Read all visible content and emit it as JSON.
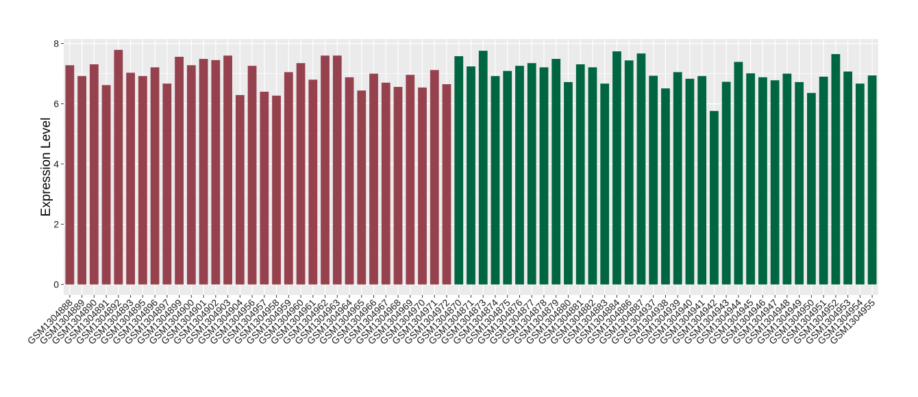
{
  "chart_data": {
    "type": "bar",
    "title": "",
    "xlabel": "",
    "ylabel": "Expression Level",
    "ylim": [
      -0.35,
      8.15
    ],
    "yticks": [
      0,
      2,
      4,
      6,
      8
    ],
    "grid": true,
    "legend": "none",
    "background_color": "#ebebeb",
    "gridline_color": "#ffffff",
    "categories": [
      "GSM1304888",
      "GSM1304889",
      "GSM1304890",
      "GSM1304891",
      "GSM1304892",
      "GSM1304893",
      "GSM1304895",
      "GSM1304896",
      "GSM1304897",
      "GSM1304899",
      "GSM1304900",
      "GSM1304901",
      "GSM1304902",
      "GSM1304903",
      "GSM1304904",
      "GSM1304956",
      "GSM1304957",
      "GSM1304958",
      "GSM1304959",
      "GSM1304960",
      "GSM1304961",
      "GSM1304962",
      "GSM1304963",
      "GSM1304964",
      "GSM1304965",
      "GSM1304966",
      "GSM1304967",
      "GSM1304968",
      "GSM1304969",
      "GSM1304970",
      "GSM1304971",
      "GSM1304972",
      "GSM1304870",
      "GSM1304871",
      "GSM1304873",
      "GSM1304874",
      "GSM1304875",
      "GSM1304876",
      "GSM1304877",
      "GSM1304878",
      "GSM1304879",
      "GSM1304880",
      "GSM1304881",
      "GSM1304882",
      "GSM1304883",
      "GSM1304884",
      "GSM1304886",
      "GSM1304887",
      "GSM1304937",
      "GSM1304938",
      "GSM1304939",
      "GSM1304940",
      "GSM1304941",
      "GSM1304942",
      "GSM1304943",
      "GSM1304944",
      "GSM1304945",
      "GSM1304946",
      "GSM1304947",
      "GSM1304948",
      "GSM1304949",
      "GSM1304950",
      "GSM1304951",
      "GSM1304952",
      "GSM1304953",
      "GSM1304954",
      "GSM1304955"
    ],
    "values": [
      7.28,
      6.92,
      7.31,
      6.62,
      7.79,
      7.03,
      6.92,
      7.21,
      6.67,
      7.56,
      7.28,
      7.49,
      7.45,
      7.6,
      6.29,
      7.26,
      6.4,
      6.27,
      7.05,
      7.35,
      6.8,
      7.6,
      7.6,
      6.88,
      6.44,
      7.0,
      6.7,
      6.56,
      6.96,
      6.54,
      7.12,
      6.65,
      7.58,
      7.24,
      7.76,
      6.92,
      7.09,
      7.26,
      7.35,
      7.21,
      7.49,
      6.72,
      7.31,
      7.21,
      6.67,
      7.74,
      7.44,
      7.67,
      6.93,
      6.51,
      7.05,
      6.83,
      6.92,
      5.76,
      6.73,
      7.39,
      7.01,
      6.88,
      6.78,
      7.0,
      6.72,
      6.36,
      6.9,
      7.65,
      7.07,
      6.67,
      6.94
    ],
    "bar_colors": [
      "#96414e",
      "#96414e",
      "#96414e",
      "#96414e",
      "#96414e",
      "#96414e",
      "#96414e",
      "#96414e",
      "#96414e",
      "#96414e",
      "#96414e",
      "#96414e",
      "#96414e",
      "#96414e",
      "#96414e",
      "#96414e",
      "#96414e",
      "#96414e",
      "#96414e",
      "#96414e",
      "#96414e",
      "#96414e",
      "#96414e",
      "#96414e",
      "#96414e",
      "#96414e",
      "#96414e",
      "#96414e",
      "#96414e",
      "#96414e",
      "#96414e",
      "#96414e",
      "#006641",
      "#006641",
      "#006641",
      "#006641",
      "#006641",
      "#006641",
      "#006641",
      "#006641",
      "#006641",
      "#006641",
      "#006641",
      "#006641",
      "#006641",
      "#006641",
      "#006641",
      "#006641",
      "#006641",
      "#006641",
      "#006641",
      "#006641",
      "#006641",
      "#006641",
      "#006641",
      "#006641",
      "#006641",
      "#006641",
      "#006641",
      "#006641",
      "#006641",
      "#006641",
      "#006641",
      "#006641",
      "#006641",
      "#006641",
      "#006641"
    ]
  }
}
